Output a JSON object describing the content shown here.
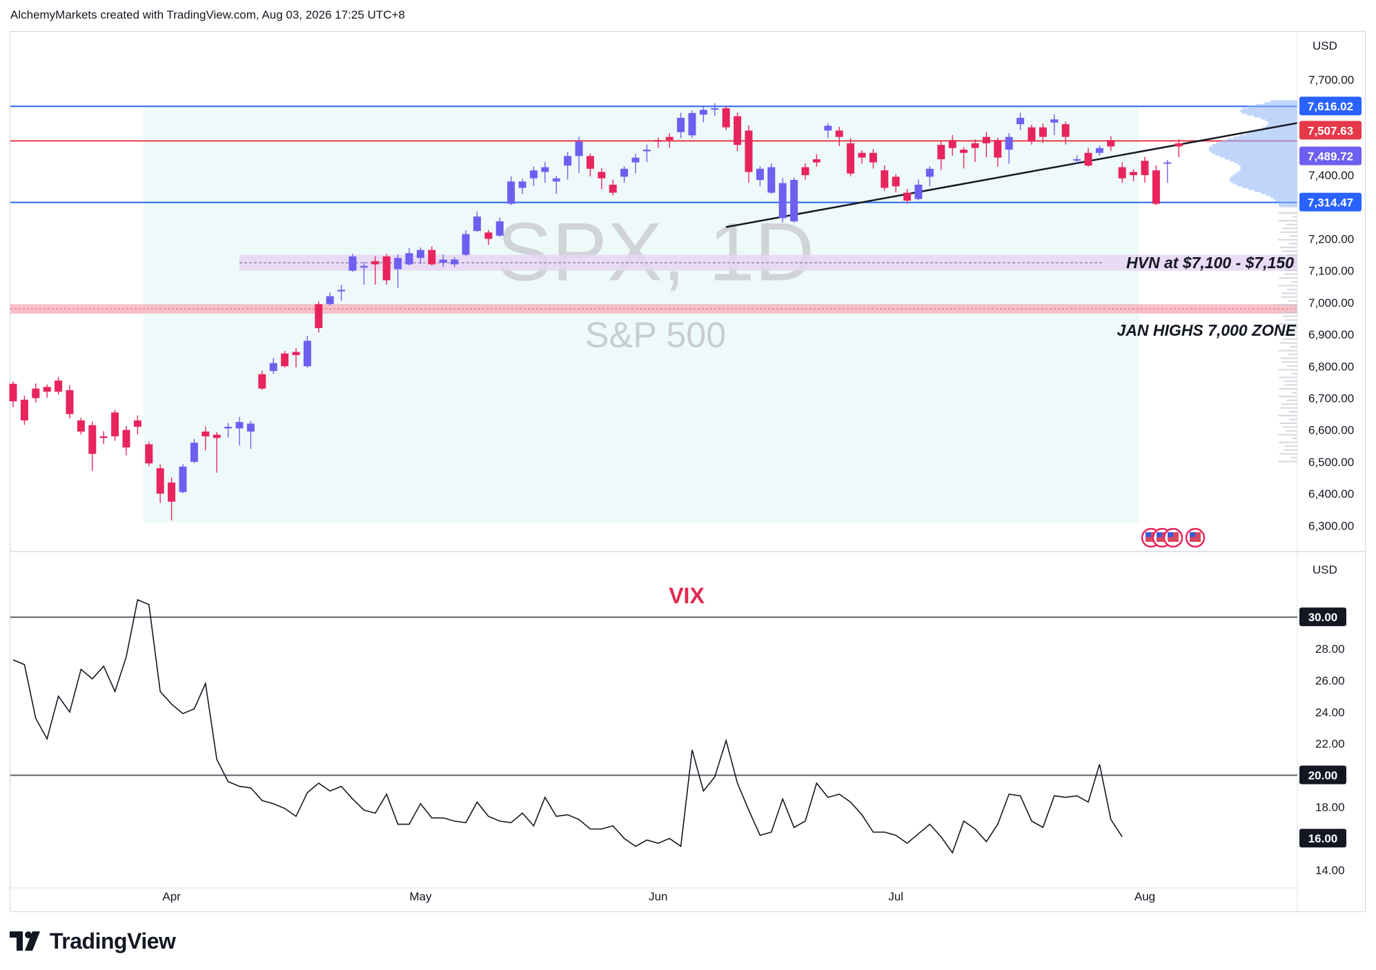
{
  "header": {
    "credit": "AlchemyMarkets created with TradingView.com, Aug 03, 2026 17:25 UTC+8"
  },
  "footer": {
    "brand": "TradingView"
  },
  "colors": {
    "up": "#6e5ff0",
    "down": "#e8245d",
    "resistance": "#e53949",
    "support": "#2962ff",
    "vix_line": "#131722",
    "range_fill": "#eefafa",
    "hvn_fill": "#e6d6f2",
    "jan_fill": "#f7b6bf"
  },
  "chart_data": [
    {
      "type": "candlestick",
      "symbol_label": "SPX, 1D",
      "name_label": "S&P 500",
      "currency": "USD",
      "ylim": [
        6240,
        7820
      ],
      "yticks": [
        6300,
        6400,
        6500,
        6600,
        6700,
        6800,
        6900,
        7000,
        7100,
        7200,
        7400,
        7700
      ],
      "ytick_labels": [
        "6,300.00",
        "6,400.00",
        "6,500.00",
        "6,600.00",
        "6,700.00",
        "6,800.00",
        "6,900.00",
        "7,000.00",
        "7,100.00",
        "7,200.00",
        "7,400.00",
        "7,700.00"
      ],
      "price_badges": [
        {
          "label": "7,616.02",
          "value": 7616.02,
          "color": "#2962ff"
        },
        {
          "label": "7,507.63",
          "value": 7507.63,
          "color": "#e53949"
        },
        {
          "label": "7,489.72",
          "value": 7489.72,
          "color": "#6e5ff0"
        },
        {
          "label": "7,314.47",
          "value": 7314.47,
          "color": "#2962ff"
        }
      ],
      "levels": [
        {
          "value": 7616.02,
          "kind": "support"
        },
        {
          "value": 7507.63,
          "kind": "resistance"
        },
        {
          "value": 7314.47,
          "kind": "support"
        }
      ],
      "zones": [
        {
          "from": 7100,
          "to": 7150,
          "label": "HVN at $7,100 - $7,150",
          "kind": "hvn"
        },
        {
          "from": 6965,
          "to": 6995,
          "label": "JAN HIGHS 7,000 ZONE",
          "kind": "jan"
        }
      ],
      "trendline": {
        "start_index": 63,
        "start_value": 7237,
        "end_index": 99,
        "end_value": 7470
      },
      "range_box": {
        "from_index": 12,
        "to_index": 99,
        "low": 6310,
        "high": 7616
      },
      "x_months": [
        {
          "label": "Apr",
          "index": 14
        },
        {
          "label": "May",
          "index": 36
        },
        {
          "label": "Jun",
          "index": 57
        },
        {
          "label": "Jul",
          "index": 78
        },
        {
          "label": "Aug",
          "index": 100
        }
      ],
      "candles": [
        [
          6740,
          6745,
          6690,
          6675
        ],
        [
          6690,
          6695,
          6630,
          6620
        ],
        [
          6705,
          6730,
          6700,
          6690
        ],
        [
          6715,
          6735,
          6720,
          6705
        ],
        [
          6745,
          6755,
          6720,
          6715
        ],
        [
          6720,
          6725,
          6650,
          6640
        ],
        [
          6625,
          6630,
          6595,
          6590
        ],
        [
          6610,
          6615,
          6525,
          6475
        ],
        [
          6565,
          6580,
          6575,
          6560
        ],
        [
          6575,
          6655,
          6580,
          6570
        ],
        [
          6550,
          6600,
          6545,
          6525
        ],
        [
          6610,
          6630,
          6610,
          6590
        ],
        [
          6550,
          6555,
          6495,
          6490
        ],
        [
          6485,
          6480,
          6400,
          6375
        ],
        [
          6435,
          6435,
          6375,
          6320
        ],
        [
          6395,
          6405,
          6485,
          6500
        ],
        [
          6490,
          6500,
          6560,
          6610
        ],
        [
          6575,
          6595,
          6580,
          6540
        ],
        [
          6520,
          6585,
          6575,
          6470
        ],
        [
          6600,
          6605,
          6610,
          6580
        ],
        [
          6600,
          6605,
          6625,
          6555
        ],
        [
          6590,
          6595,
          6620,
          6545
        ],
        [
          6765,
          6775,
          6730,
          6750
        ],
        [
          6775,
          6785,
          6810,
          6780
        ],
        [
          6825,
          6840,
          6800,
          6810
        ],
        [
          6815,
          6845,
          6835,
          6800
        ],
        [
          6800,
          6800,
          6880,
          6890
        ],
        [
          6970,
          6995,
          6920,
          6910
        ],
        [
          6980,
          6995,
          7020,
          7025
        ],
        [
          7030,
          7035,
          7040,
          7010
        ],
        [
          7090,
          7100,
          7145,
          7140
        ],
        [
          7120,
          7110,
          7115,
          7060
        ],
        [
          7100,
          7130,
          7120,
          7060
        ],
        [
          7125,
          7145,
          7070,
          7060
        ],
        [
          7090,
          7105,
          7140,
          7050
        ],
        [
          7120,
          7120,
          7155,
          7125
        ],
        [
          7130,
          7140,
          7165,
          7125
        ],
        [
          7150,
          7165,
          7120,
          7120
        ],
        [
          7135,
          7125,
          7135,
          7115
        ],
        [
          7130,
          7120,
          7135,
          7115
        ],
        [
          7145,
          7150,
          7215,
          7210
        ],
        [
          7235,
          7225,
          7270,
          7225
        ],
        [
          7225,
          7220,
          7200,
          7185
        ],
        [
          7215,
          7210,
          7255,
          7255
        ],
        [
          7280,
          7310,
          7380,
          7375
        ],
        [
          7345,
          7360,
          7380,
          7345
        ],
        [
          7380,
          7390,
          7415,
          7370
        ],
        [
          7395,
          7410,
          7425,
          7380
        ],
        [
          7385,
          7380,
          7390,
          7345
        ],
        [
          7420,
          7430,
          7460,
          7390
        ],
        [
          7420,
          7460,
          7505,
          7410
        ],
        [
          7430,
          7460,
          7420,
          7400
        ],
        [
          7400,
          7410,
          7390,
          7360
        ],
        [
          7360,
          7370,
          7345,
          7340
        ],
        [
          7390,
          7395,
          7420,
          7380
        ],
        [
          7430,
          7440,
          7455,
          7410
        ],
        [
          7460,
          7475,
          7480,
          7445
        ],
        [
          7500,
          7510,
          7505,
          7490
        ],
        [
          7500,
          7520,
          7510,
          7490
        ],
        [
          7520,
          7535,
          7580,
          7520
        ],
        [
          7530,
          7525,
          7595,
          7520
        ],
        [
          7580,
          7590,
          7605,
          7570
        ],
        [
          7595,
          7610,
          7610,
          7590
        ],
        [
          7600,
          7610,
          7550,
          7545
        ],
        [
          7530,
          7585,
          7495,
          7480
        ],
        [
          7500,
          7540,
          7410,
          7380
        ],
        [
          7390,
          7385,
          7420,
          7370
        ],
        [
          7420,
          7345,
          7425,
          7370
        ],
        [
          7380,
          7265,
          7375,
          7255
        ],
        [
          7260,
          7255,
          7385,
          7265
        ],
        [
          7405,
          7425,
          7400,
          7390
        ],
        [
          7440,
          7450,
          7440,
          7430
        ],
        [
          7540,
          7540,
          7555,
          7520
        ],
        [
          7540,
          7540,
          7520,
          7495
        ],
        [
          7530,
          7500,
          7405,
          7400
        ],
        [
          7455,
          7470,
          7455,
          7440
        ],
        [
          7455,
          7470,
          7440,
          7425
        ],
        [
          7370,
          7415,
          7360,
          7355
        ],
        [
          7370,
          7395,
          7365,
          7350
        ],
        [
          7355,
          7345,
          7320,
          7315
        ],
        [
          7330,
          7325,
          7370,
          7390
        ],
        [
          7375,
          7395,
          7420,
          7370
        ],
        [
          7420,
          7495,
          7450,
          7420
        ],
        [
          7510,
          7510,
          7485,
          7465
        ],
        [
          7460,
          7480,
          7470,
          7425
        ],
        [
          7480,
          7500,
          7485,
          7445
        ],
        [
          7520,
          7520,
          7500,
          7460
        ],
        [
          7495,
          7510,
          7455,
          7430
        ],
        [
          7460,
          7480,
          7520,
          7440
        ],
        [
          7550,
          7560,
          7580,
          7545
        ],
        [
          7535,
          7550,
          7505,
          7500
        ],
        [
          7535,
          7550,
          7520,
          7505
        ],
        [
          7560,
          7565,
          7575,
          7530
        ],
        [
          7560,
          7560,
          7520,
          7500
        ],
        [
          7455,
          7450,
          7450,
          7440
        ],
        [
          7490,
          7470,
          7430,
          7430
        ],
        [
          7470,
          7470,
          7485,
          7465
        ],
        [
          7465,
          7510,
          7490,
          7480
        ],
        [
          7410,
          7425,
          7390,
          7380
        ],
        [
          7400,
          7410,
          7400,
          7385
        ],
        [
          7445,
          7445,
          7400,
          7380
        ],
        [
          7420,
          7415,
          7310,
          7310
        ],
        [
          7410,
          7440,
          7440,
          7380
        ],
        [
          7460,
          7500,
          7490,
          7460
        ]
      ]
    },
    {
      "type": "line",
      "title": "VIX",
      "currency": "USD",
      "ylim": [
        13,
        33.5
      ],
      "yticks": [
        14,
        16,
        18,
        20,
        22,
        24,
        26,
        28,
        30
      ],
      "ytick_labels": [
        "14.00",
        "16.00",
        "18.00",
        "20.00",
        "22.00",
        "24.00",
        "26.00",
        "28.00",
        "30.00"
      ],
      "badges": [
        {
          "label": "30.00",
          "value": 30
        },
        {
          "label": "20.00",
          "value": 20
        },
        {
          "label": "16.00",
          "value": 16
        }
      ],
      "reference_lines": [
        30,
        20
      ],
      "values": [
        27.3,
        27.0,
        23.6,
        22.3,
        25.0,
        24.0,
        26.7,
        26.1,
        26.9,
        25.3,
        27.5,
        31.1,
        30.8,
        25.3,
        24.5,
        23.9,
        24.2,
        25.8,
        21.0,
        19.6,
        19.3,
        19.2,
        18.4,
        18.2,
        17.9,
        17.4,
        18.9,
        19.5,
        19.0,
        19.3,
        18.5,
        17.8,
        17.6,
        18.8,
        16.9,
        16.9,
        18.2,
        17.3,
        17.3,
        17.1,
        17.0,
        18.3,
        17.4,
        17.1,
        17.0,
        17.6,
        16.8,
        18.6,
        17.4,
        17.5,
        17.2,
        16.6,
        16.6,
        16.8,
        16.0,
        15.5,
        15.9,
        15.7,
        16.0,
        15.5,
        21.6,
        19.0,
        19.9,
        22.2,
        19.5,
        17.8,
        16.2,
        16.4,
        18.5,
        16.7,
        17.1,
        19.5,
        18.6,
        18.8,
        18.3,
        17.5,
        16.4,
        16.4,
        16.2,
        15.7,
        16.3,
        16.9,
        16.1,
        15.1,
        17.1,
        16.6,
        15.8,
        16.9,
        18.8,
        18.7,
        17.1,
        16.7,
        18.7,
        18.6,
        18.7,
        18.3,
        20.7,
        17.2,
        16.1
      ]
    }
  ]
}
